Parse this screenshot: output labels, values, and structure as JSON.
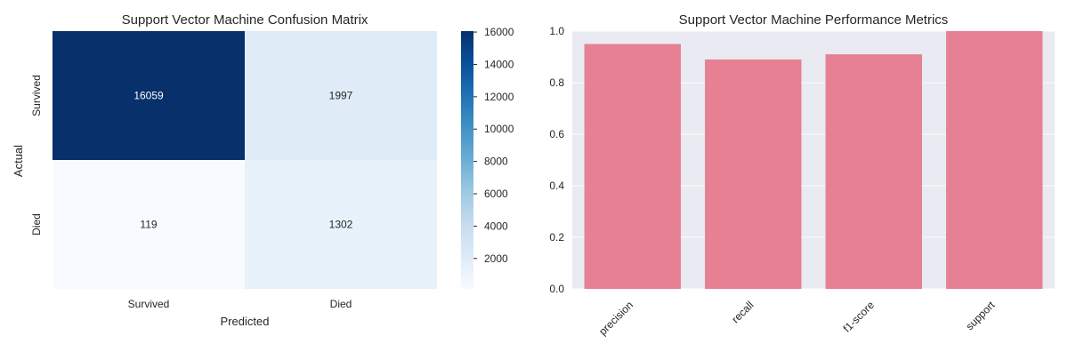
{
  "colors": {
    "heatmap_low": "#f7fbff",
    "heatmap_high": "#08306b",
    "bar": "#e68193",
    "bar_panel_bg": "#eaeaf2",
    "grid": "#ffffff"
  },
  "chart_data": [
    {
      "type": "heatmap",
      "title": "Support Vector Machine Confusion Matrix",
      "xlabel": "Predicted",
      "ylabel": "Actual",
      "x_categories": [
        "Survived",
        "Died"
      ],
      "y_categories": [
        "Survived",
        "Died"
      ],
      "values": [
        [
          16059,
          1997
        ],
        [
          119,
          1302
        ]
      ],
      "colormap": "Blues",
      "colorbar": {
        "range": [
          119,
          16059
        ],
        "ticks": [
          2000,
          4000,
          6000,
          8000,
          10000,
          12000,
          14000,
          16000
        ],
        "tick_labels": [
          "2000",
          "4000",
          "6000",
          "8000",
          "10000",
          "12000",
          "14000",
          "16000"
        ]
      }
    },
    {
      "type": "bar",
      "title": "Support Vector Machine Performance Metrics",
      "xlabel": "",
      "ylabel": "",
      "categories": [
        "precision",
        "recall",
        "f1-score",
        "support"
      ],
      "values": [
        0.95,
        0.89,
        0.91,
        1.0
      ],
      "ylim": [
        0,
        1.0
      ],
      "yticks": [
        0.0,
        0.2,
        0.4,
        0.6,
        0.8,
        1.0
      ],
      "ytick_labels": [
        "0.0",
        "0.2",
        "0.4",
        "0.6",
        "0.8",
        "1.0"
      ],
      "grid": true
    }
  ]
}
